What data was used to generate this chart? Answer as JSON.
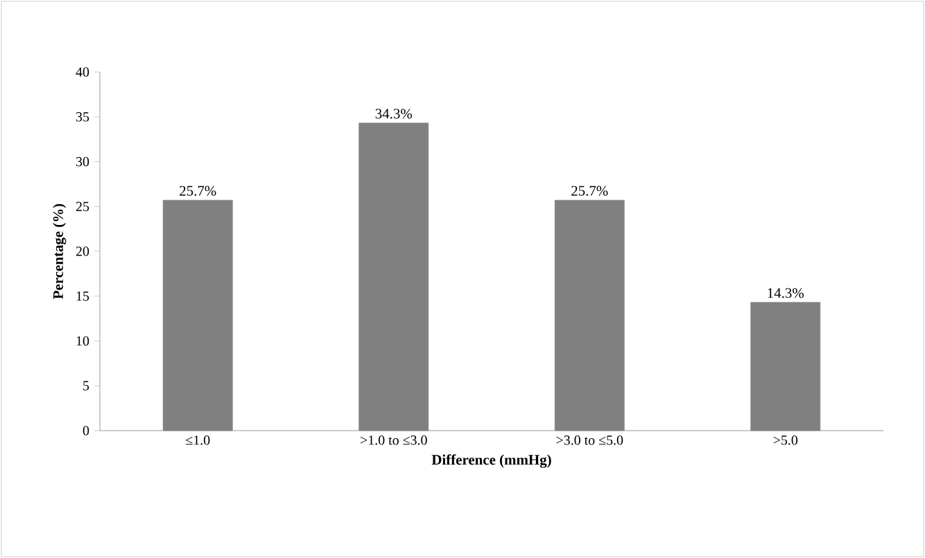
{
  "chart_data": {
    "type": "bar",
    "xlabel": "Difference (mmHg)",
    "ylabel": "Percentage (%)",
    "categories": [
      "≤1.0",
      ">1.0 to ≤3.0",
      ">3.0 to ≤5.0",
      ">5.0"
    ],
    "values": [
      25.7,
      34.3,
      25.7,
      14.3
    ],
    "value_labels": [
      "25.7%",
      "34.3%",
      "25.7%",
      "14.3%"
    ],
    "color": "#808080",
    "ylim": [
      0,
      40
    ],
    "yticks": [
      0,
      5,
      10,
      15,
      20,
      25,
      30,
      35,
      40
    ],
    "grid": false
  }
}
